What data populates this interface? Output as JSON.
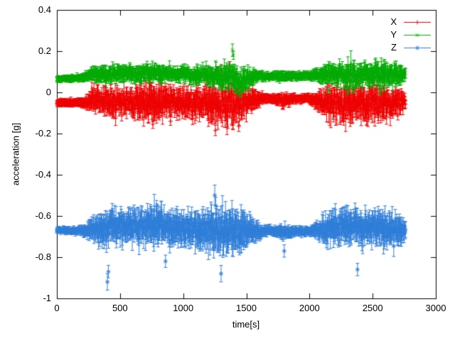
{
  "figure": {
    "background": "#ffffff",
    "border_color": "#000000",
    "text_color": "#000000"
  },
  "chart_data": {
    "type": "scatter",
    "style": "points-with-yerrorbars",
    "title": "",
    "xlabel": "time[s]",
    "ylabel": "acceleration [g]",
    "xlim": [
      0,
      3000
    ],
    "ylim": [
      -1,
      0.4
    ],
    "grid": false,
    "legend": {
      "position": "top-right",
      "entries": [
        "X",
        "Y",
        "Z"
      ]
    },
    "xticks": {
      "values": [
        0,
        500,
        1000,
        1500,
        2000,
        2500,
        3000
      ],
      "labels": [
        "0",
        "500",
        "1000",
        "1500",
        "2000",
        "2500",
        "3000"
      ]
    },
    "yticks": {
      "values": [
        -1,
        -0.8,
        -0.6,
        -0.4,
        -0.2,
        0,
        0.2,
        0.4
      ],
      "labels": [
        "-1",
        "-0.8",
        "-0.6",
        "-0.4",
        "-0.2",
        "0",
        "0.2",
        "0.4"
      ]
    },
    "t_range": [
      0,
      2760
    ],
    "sample_step_s": 3,
    "series": [
      {
        "name": "X",
        "color": "#ee0000",
        "marker": "plus",
        "baseline": -0.05,
        "envelope": [
          [
            0,
            -0.05,
            0.012
          ],
          [
            150,
            -0.05,
            0.012
          ],
          [
            230,
            -0.05,
            0.02
          ],
          [
            280,
            -0.035,
            0.045
          ],
          [
            350,
            -0.04,
            0.05
          ],
          [
            450,
            -0.05,
            0.055
          ],
          [
            550,
            -0.045,
            0.05
          ],
          [
            650,
            -0.055,
            0.065
          ],
          [
            750,
            -0.06,
            0.075
          ],
          [
            850,
            -0.05,
            0.07
          ],
          [
            950,
            -0.05,
            0.055
          ],
          [
            1050,
            -0.045,
            0.06
          ],
          [
            1150,
            -0.05,
            0.065
          ],
          [
            1250,
            -0.06,
            0.08
          ],
          [
            1350,
            -0.055,
            0.085
          ],
          [
            1450,
            -0.055,
            0.07
          ],
          [
            1550,
            -0.04,
            0.045
          ],
          [
            1620,
            -0.03,
            0.018
          ],
          [
            1700,
            -0.03,
            0.014
          ],
          [
            1800,
            -0.04,
            0.025
          ],
          [
            1880,
            -0.03,
            0.014
          ],
          [
            2000,
            -0.03,
            0.014
          ],
          [
            2060,
            -0.04,
            0.03
          ],
          [
            2130,
            -0.05,
            0.06
          ],
          [
            2250,
            -0.06,
            0.075
          ],
          [
            2350,
            -0.05,
            0.07
          ],
          [
            2450,
            -0.055,
            0.065
          ],
          [
            2550,
            -0.05,
            0.075
          ],
          [
            2650,
            -0.055,
            0.06
          ],
          [
            2720,
            -0.05,
            0.05
          ],
          [
            2760,
            -0.04,
            0.03
          ]
        ],
        "spikes": [
          [
            760,
            -0.155,
            0.02
          ],
          [
            900,
            -0.14,
            0.02
          ],
          [
            1255,
            -0.185,
            0.025
          ],
          [
            1300,
            0.105,
            0.025
          ],
          [
            1440,
            -0.165,
            0.025
          ],
          [
            2330,
            -0.13,
            0.02
          ]
        ]
      },
      {
        "name": "Y",
        "color": "#00aa00",
        "marker": "cross",
        "baseline": 0.08,
        "envelope": [
          [
            0,
            0.065,
            0.008
          ],
          [
            150,
            0.07,
            0.01
          ],
          [
            230,
            0.075,
            0.015
          ],
          [
            280,
            0.09,
            0.028
          ],
          [
            400,
            0.085,
            0.03
          ],
          [
            500,
            0.09,
            0.032
          ],
          [
            600,
            0.09,
            0.03
          ],
          [
            700,
            0.092,
            0.033
          ],
          [
            800,
            0.09,
            0.03
          ],
          [
            900,
            0.087,
            0.028
          ],
          [
            1000,
            0.09,
            0.03
          ],
          [
            1100,
            0.085,
            0.03
          ],
          [
            1200,
            0.08,
            0.038
          ],
          [
            1300,
            0.072,
            0.042
          ],
          [
            1380,
            0.09,
            0.05
          ],
          [
            1450,
            0.055,
            0.05
          ],
          [
            1520,
            0.07,
            0.04
          ],
          [
            1600,
            0.08,
            0.015
          ],
          [
            1700,
            0.08,
            0.012
          ],
          [
            1800,
            0.077,
            0.018
          ],
          [
            1900,
            0.08,
            0.012
          ],
          [
            2000,
            0.08,
            0.012
          ],
          [
            2060,
            0.085,
            0.025
          ],
          [
            2130,
            0.09,
            0.04
          ],
          [
            2250,
            0.09,
            0.042
          ],
          [
            2350,
            0.08,
            0.05
          ],
          [
            2450,
            0.09,
            0.04
          ],
          [
            2550,
            0.085,
            0.05
          ],
          [
            2650,
            0.09,
            0.04
          ],
          [
            2720,
            0.09,
            0.035
          ],
          [
            2760,
            0.085,
            0.02
          ]
        ],
        "spikes": [
          [
            1390,
            0.205,
            0.03
          ],
          [
            1398,
            0.18,
            0.02
          ],
          [
            1470,
            0.01,
            0.015
          ],
          [
            2150,
            0.01,
            0.015
          ],
          [
            2300,
            0.005,
            0.015
          ],
          [
            2560,
            0.005,
            0.015
          ]
        ]
      },
      {
        "name": "Z",
        "color": "#2f7ed8",
        "marker": "asterisk",
        "baseline": -0.67,
        "envelope": [
          [
            0,
            -0.67,
            0.01
          ],
          [
            150,
            -0.672,
            0.01
          ],
          [
            230,
            -0.67,
            0.02
          ],
          [
            280,
            -0.66,
            0.05
          ],
          [
            350,
            -0.665,
            0.06
          ],
          [
            450,
            -0.66,
            0.065
          ],
          [
            550,
            -0.655,
            0.065
          ],
          [
            650,
            -0.65,
            0.07
          ],
          [
            750,
            -0.645,
            0.075
          ],
          [
            820,
            -0.635,
            0.075
          ],
          [
            900,
            -0.655,
            0.07
          ],
          [
            1000,
            -0.66,
            0.07
          ],
          [
            1100,
            -0.665,
            0.07
          ],
          [
            1200,
            -0.66,
            0.08
          ],
          [
            1280,
            -0.665,
            0.095
          ],
          [
            1380,
            -0.67,
            0.085
          ],
          [
            1480,
            -0.67,
            0.08
          ],
          [
            1560,
            -0.67,
            0.05
          ],
          [
            1620,
            -0.675,
            0.02
          ],
          [
            1700,
            -0.672,
            0.014
          ],
          [
            1800,
            -0.678,
            0.025
          ],
          [
            1900,
            -0.675,
            0.014
          ],
          [
            2000,
            -0.675,
            0.014
          ],
          [
            2060,
            -0.67,
            0.03
          ],
          [
            2130,
            -0.66,
            0.065
          ],
          [
            2250,
            -0.65,
            0.07
          ],
          [
            2350,
            -0.645,
            0.07
          ],
          [
            2450,
            -0.658,
            0.068
          ],
          [
            2550,
            -0.652,
            0.075
          ],
          [
            2650,
            -0.66,
            0.065
          ],
          [
            2720,
            -0.665,
            0.055
          ],
          [
            2760,
            -0.668,
            0.03
          ]
        ],
        "spikes": [
          [
            400,
            -0.92,
            0.04
          ],
          [
            408,
            -0.87,
            0.03
          ],
          [
            860,
            -0.82,
            0.03
          ],
          [
            1250,
            -0.5,
            0.05
          ],
          [
            1258,
            -0.55,
            0.04
          ],
          [
            1300,
            -0.88,
            0.04
          ],
          [
            1800,
            -0.77,
            0.03
          ],
          [
            2380,
            -0.86,
            0.03
          ]
        ]
      }
    ]
  }
}
